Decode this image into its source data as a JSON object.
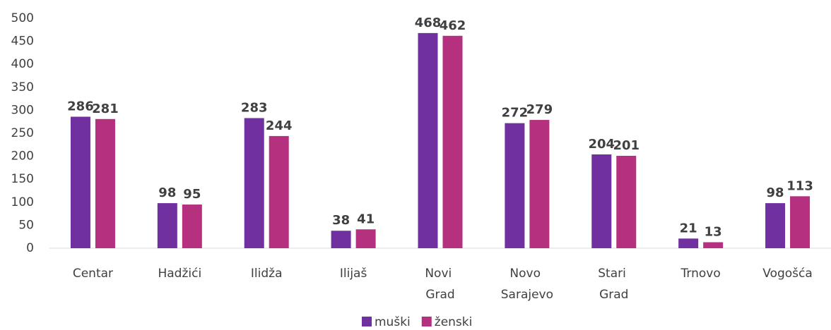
{
  "chart_data": {
    "type": "bar",
    "categories": [
      "Centar",
      "Hadžići",
      "Ilidža",
      "Ilijaš",
      "Novi Grad",
      "Novo Sarajevo",
      "Stari Grad",
      "Trnovo",
      "Vogošća"
    ],
    "series": [
      {
        "name": "muški",
        "color": "#7030a0",
        "values": [
          286,
          98,
          283,
          38,
          468,
          272,
          204,
          21,
          98
        ]
      },
      {
        "name": "ženski",
        "color": "#b5307f",
        "values": [
          281,
          95,
          244,
          41,
          462,
          279,
          201,
          13,
          113
        ]
      }
    ],
    "ylim": [
      0,
      500
    ],
    "yticks": [
      0,
      50,
      100,
      150,
      200,
      250,
      300,
      350,
      400,
      450,
      500
    ],
    "grid": false,
    "legend": "bottom"
  }
}
